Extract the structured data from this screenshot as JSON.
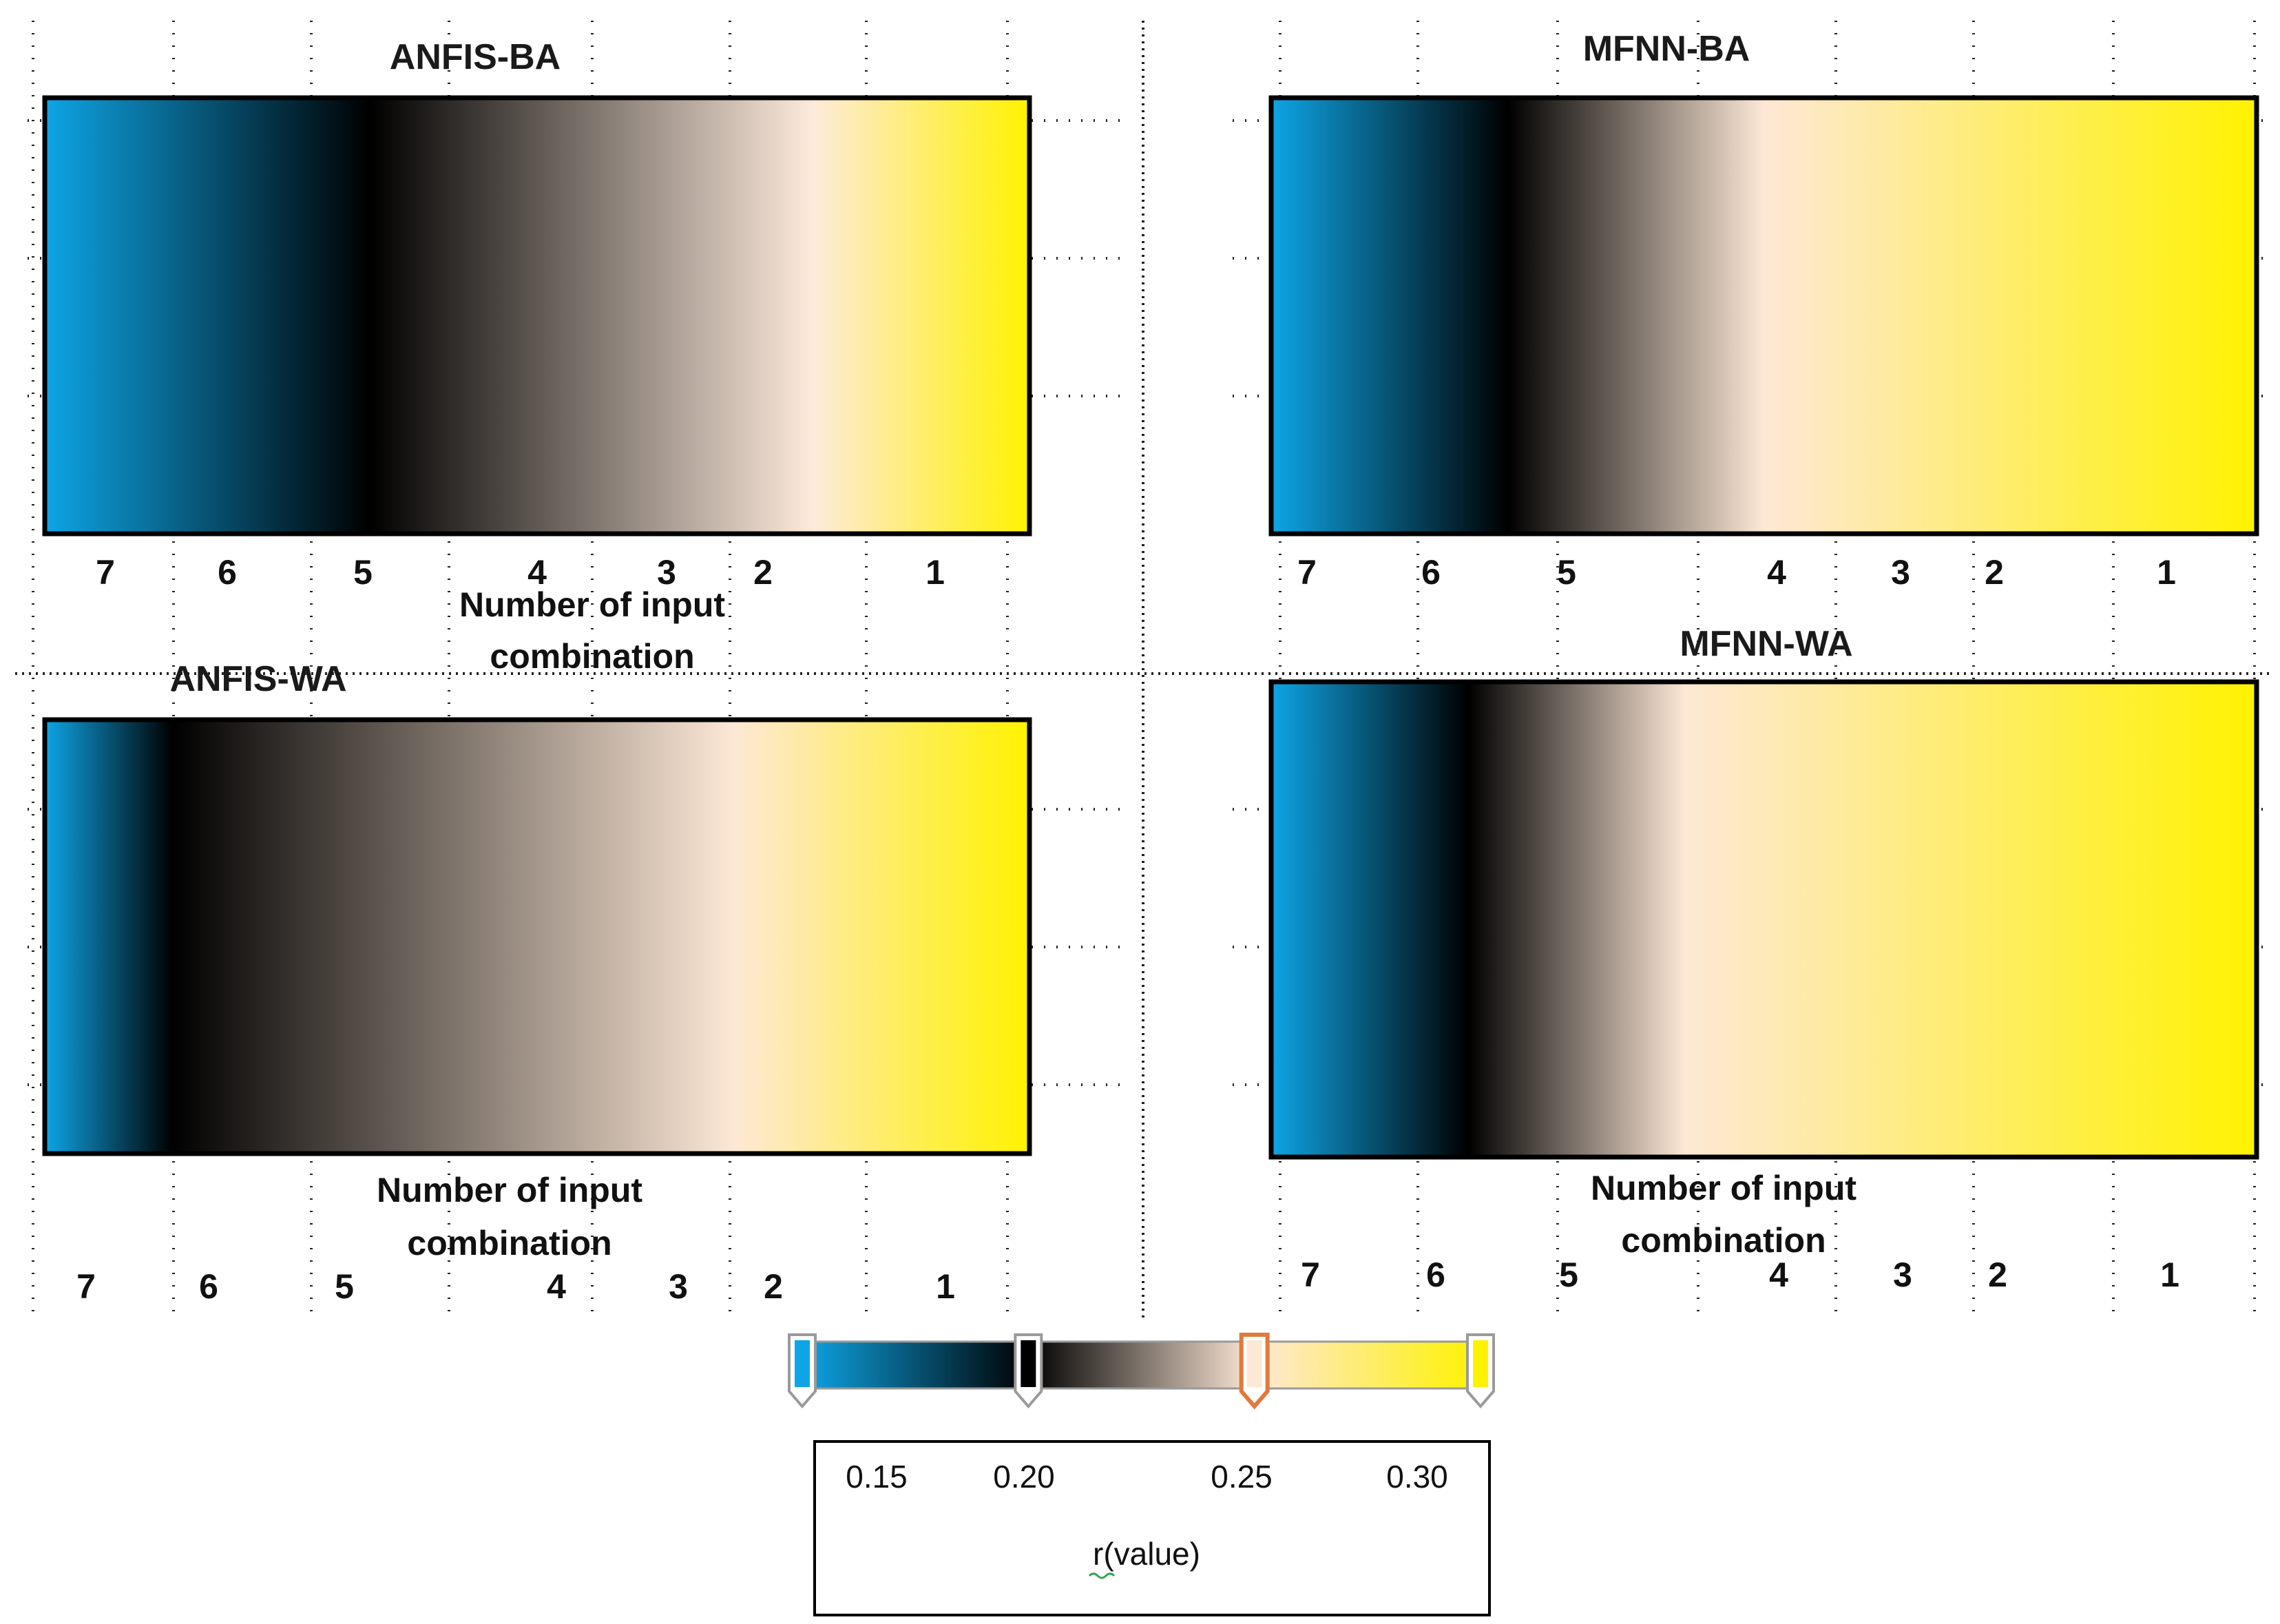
{
  "chart_data": [
    {
      "type": "heatmap",
      "title": "ANFIS-BA",
      "xlabel_lines": [
        "Number of input",
        "combination"
      ],
      "categories": [
        "7",
        "6",
        "5",
        "4",
        "3",
        "2",
        "1"
      ],
      "gradient": [
        {
          "value": 0.15,
          "color": "#0ea5e6"
        },
        {
          "value": 0.2,
          "color": "#000000"
        },
        {
          "value": 0.25,
          "color": "#fdeadb"
        },
        {
          "value": 0.3,
          "color": "#fff200"
        }
      ]
    },
    {
      "type": "heatmap",
      "title": "MFNN-BA",
      "xlabel_lines": [],
      "categories": [
        "7",
        "6",
        "5",
        "4",
        "3",
        "2",
        "1"
      ],
      "gradient": [
        {
          "value": 0.15,
          "color": "#0ea5e6"
        },
        {
          "value": 0.2,
          "color": "#000000"
        },
        {
          "value": 0.25,
          "color": "#fde8d6"
        },
        {
          "value": 0.3,
          "color": "#fff200"
        }
      ]
    },
    {
      "type": "heatmap",
      "title": "ANFIS-WA",
      "xlabel_lines": [
        "Number of input",
        "combination"
      ],
      "categories": [
        "7",
        "6",
        "5",
        "4",
        "3",
        "2",
        "1"
      ],
      "gradient": [
        {
          "value": 0.15,
          "color": "#0ea5e6"
        },
        {
          "value": 0.2,
          "color": "#000000"
        },
        {
          "value": 0.25,
          "color": "#fde8d6"
        },
        {
          "value": 0.3,
          "color": "#fff200"
        }
      ]
    },
    {
      "type": "heatmap",
      "title": "MFNN-WA",
      "xlabel_lines": [
        "Number of input",
        "combination"
      ],
      "categories": [
        "7",
        "6",
        "5",
        "4",
        "3",
        "2",
        "1"
      ],
      "gradient": [
        {
          "value": 0.15,
          "color": "#0ea5e6"
        },
        {
          "value": 0.2,
          "color": "#000000"
        },
        {
          "value": 0.25,
          "color": "#fde8d6"
        },
        {
          "value": 0.3,
          "color": "#fff200"
        }
      ]
    }
  ],
  "colorbar": {
    "title": "r(value)",
    "ticks": [
      "0.15",
      "0.20",
      "0.25",
      "0.30"
    ],
    "stops": [
      {
        "value": 0.15,
        "color": "#0ea5e6"
      },
      {
        "value": 0.2,
        "color": "#000000"
      },
      {
        "value": 0.25,
        "color": "#fde8d6"
      },
      {
        "value": 0.3,
        "color": "#fff200"
      }
    ],
    "selected_value": 0.25,
    "handle_colors": {
      "default": "#9a9a9a",
      "selected": "#e07a3c"
    }
  }
}
